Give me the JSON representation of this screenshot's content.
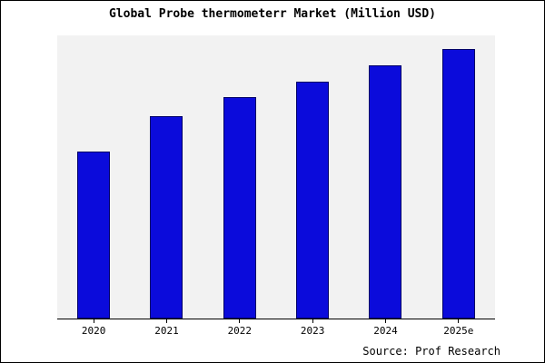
{
  "chart_data": {
    "type": "bar",
    "title": "Global Probe thermometerr Market (Million USD)",
    "categories": [
      "2020",
      "2021",
      "2022",
      "2023",
      "2024",
      "2025e"
    ],
    "values": [
      62,
      75,
      82,
      88,
      94,
      100
    ],
    "ylim": [
      0,
      105
    ],
    "xlabel": "",
    "ylabel": "",
    "grid": false,
    "legend": null,
    "bar_color": "#0b0bdb",
    "bar_edge_color": "#000066",
    "plot_background": "#f2f2f2",
    "source": "Source: Prof Research"
  }
}
